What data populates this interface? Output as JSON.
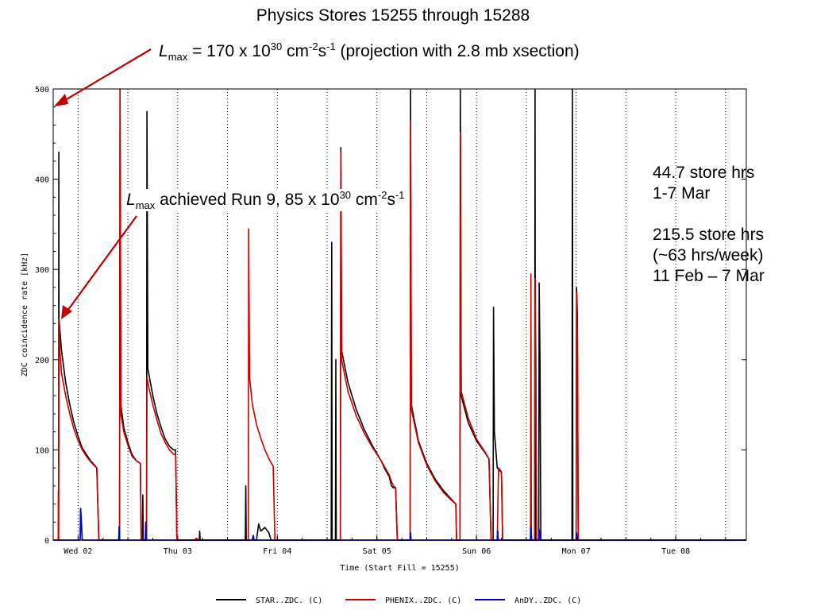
{
  "slide": {
    "title": "Physics Stores 15255 through 15288",
    "lmax_projection": {
      "symbol": "L",
      "subscript": "max",
      "pre": " = 170 x 10",
      "exp": "30",
      "mid1": " cm",
      "exp2": "-2",
      "mid2": "s",
      "exp3": "-1",
      "post": " (projection with 2.8 mb xsection)"
    },
    "lmax_achieved": {
      "symbol": "L",
      "subscript": "max",
      "pre": " achieved Run 9, 85 x 10",
      "exp": "30",
      "mid1": " cm",
      "exp2": "-2",
      "mid2": "s",
      "exp3": "-1"
    },
    "notes": {
      "line1": "44.7 store hrs",
      "line2": "1-7 Mar",
      "line3": "215.5 store hrs",
      "line4": "(~63 hrs/week)",
      "line5": "11 Feb – 7 Mar"
    },
    "arrow_color": "#c00000"
  },
  "chart_data": {
    "type": "line",
    "xlabel": "Time (Start Fill = 15255)",
    "ylabel": "ZDC coincidence rate [kHz]",
    "ylim": [
      0,
      500
    ],
    "x_unit": "hours since start of Tue 01 (midnight = 0)",
    "xlim": [
      18,
      185
    ],
    "x_ticks": [
      {
        "label": "Wed 02",
        "x": 24
      },
      {
        "label": "Thu 03",
        "x": 48
      },
      {
        "label": "Fri 04",
        "x": 72
      },
      {
        "label": "Sat 05",
        "x": 96
      },
      {
        "label": "Sun 06",
        "x": 120
      },
      {
        "label": "Mon 07",
        "x": 144
      },
      {
        "label": "Tue 08",
        "x": 168
      }
    ],
    "y_ticks": [
      0,
      100,
      200,
      300,
      400,
      500
    ],
    "grid": "vertical dotted at day boundaries",
    "legend_position": "bottom",
    "series": [
      {
        "name": "STAR..ZDC. (C)",
        "color": "#000000",
        "points": [
          [
            19.3,
            0
          ],
          [
            19.35,
            430
          ],
          [
            19.4,
            245
          ],
          [
            20,
            210
          ],
          [
            21,
            175
          ],
          [
            22,
            150
          ],
          [
            23,
            130
          ],
          [
            24,
            115
          ],
          [
            25,
            102
          ],
          [
            26,
            95
          ],
          [
            27,
            88
          ],
          [
            28,
            83
          ],
          [
            28.5,
            80
          ],
          [
            29.0,
            0
          ],
          [
            34.0,
            0
          ],
          [
            34.1,
            500
          ],
          [
            34.3,
            150
          ],
          [
            35,
            125
          ],
          [
            36,
            108
          ],
          [
            37,
            95
          ],
          [
            38,
            88
          ],
          [
            39,
            85
          ],
          [
            39.2,
            0
          ],
          [
            39.5,
            0
          ],
          [
            39.6,
            50
          ],
          [
            39.7,
            0
          ],
          [
            40.5,
            0
          ],
          [
            40.6,
            475
          ],
          [
            40.8,
            190
          ],
          [
            42,
            160
          ],
          [
            43,
            140
          ],
          [
            44,
            125
          ],
          [
            45,
            112
          ],
          [
            46,
            104
          ],
          [
            47,
            100
          ],
          [
            47.5,
            100
          ],
          [
            47.8,
            0
          ],
          [
            53.2,
            0
          ],
          [
            53.3,
            10
          ],
          [
            53.4,
            0
          ],
          [
            64.3,
            0
          ],
          [
            64.4,
            60
          ],
          [
            64.5,
            0
          ],
          [
            67,
            0
          ],
          [
            67.5,
            18
          ],
          [
            68,
            10
          ],
          [
            69,
            14
          ],
          [
            70,
            8
          ],
          [
            70.5,
            0
          ],
          [
            85,
            0
          ],
          [
            85.1,
            330
          ],
          [
            85.2,
            0
          ],
          [
            86,
            0
          ],
          [
            86.1,
            200
          ],
          [
            86.2,
            0
          ],
          [
            87.2,
            0
          ],
          [
            87.3,
            435
          ],
          [
            87.5,
            210
          ],
          [
            89,
            175
          ],
          [
            91,
            145
          ],
          [
            93,
            122
          ],
          [
            95,
            104
          ],
          [
            97,
            88
          ],
          [
            98,
            78
          ],
          [
            99,
            70
          ],
          [
            99.5,
            60
          ],
          [
            100,
            58
          ],
          [
            100.5,
            58
          ],
          [
            100.9,
            0
          ],
          [
            104,
            0
          ],
          [
            104.1,
            500
          ],
          [
            104.3,
            150
          ],
          [
            106,
            110
          ],
          [
            108,
            85
          ],
          [
            110,
            68
          ],
          [
            112,
            55
          ],
          [
            114,
            45
          ],
          [
            115,
            40
          ],
          [
            115.2,
            0
          ],
          [
            116,
            0
          ],
          [
            116.1,
            500
          ],
          [
            116.3,
            160
          ],
          [
            118,
            130
          ],
          [
            120,
            110
          ],
          [
            122,
            97
          ],
          [
            123,
            90
          ],
          [
            123.5,
            0
          ],
          [
            124,
            0
          ],
          [
            124.1,
            258
          ],
          [
            124.3,
            120
          ],
          [
            125,
            80
          ],
          [
            126,
            75
          ],
          [
            126.3,
            0
          ],
          [
            134,
            0
          ],
          [
            134.1,
            500
          ],
          [
            134.2,
            0
          ],
          [
            135,
            0
          ],
          [
            135.1,
            285
          ],
          [
            135.3,
            195
          ],
          [
            135.5,
            0
          ],
          [
            143,
            0
          ],
          [
            143.1,
            500
          ],
          [
            143.2,
            0
          ],
          [
            144,
            0
          ],
          [
            144.1,
            280
          ],
          [
            144.3,
            250
          ],
          [
            144.5,
            0
          ],
          [
            185,
            0
          ]
        ]
      },
      {
        "name": "PHENIX..ZDC. (C)",
        "color": "#cc0000",
        "points": [
          [
            19.2,
            0
          ],
          [
            19.25,
            55
          ],
          [
            19.3,
            0
          ],
          [
            19.4,
            245
          ],
          [
            19.6,
            210
          ],
          [
            20,
            185
          ],
          [
            21,
            160
          ],
          [
            22,
            140
          ],
          [
            23,
            123
          ],
          [
            24,
            110
          ],
          [
            25,
            100
          ],
          [
            26,
            93
          ],
          [
            27,
            87
          ],
          [
            28,
            82
          ],
          [
            28.5,
            80
          ],
          [
            29.0,
            0
          ],
          [
            34.0,
            0
          ],
          [
            34.1,
            500
          ],
          [
            34.3,
            140
          ],
          [
            35,
            120
          ],
          [
            36,
            105
          ],
          [
            37,
            93
          ],
          [
            38,
            88
          ],
          [
            39,
            85
          ],
          [
            39.2,
            0
          ],
          [
            40.5,
            0
          ],
          [
            40.6,
            180
          ],
          [
            41,
            170
          ],
          [
            42,
            150
          ],
          [
            43,
            133
          ],
          [
            44,
            118
          ],
          [
            45,
            108
          ],
          [
            46,
            100
          ],
          [
            47,
            95
          ],
          [
            47.5,
            95
          ],
          [
            47.8,
            0
          ],
          [
            52,
            0
          ],
          [
            52.5,
            2
          ],
          [
            53,
            0
          ],
          [
            65,
            0
          ],
          [
            65.1,
            345
          ],
          [
            65.3,
            180
          ],
          [
            66,
            150
          ],
          [
            67,
            128
          ],
          [
            68,
            113
          ],
          [
            69,
            100
          ],
          [
            70,
            90
          ],
          [
            71,
            82
          ],
          [
            71.4,
            0
          ],
          [
            87.2,
            0
          ],
          [
            87.3,
            430
          ],
          [
            87.5,
            200
          ],
          [
            89,
            165
          ],
          [
            91,
            138
          ],
          [
            93,
            118
          ],
          [
            95,
            102
          ],
          [
            97,
            88
          ],
          [
            98,
            80
          ],
          [
            99,
            72
          ],
          [
            99.5,
            65
          ],
          [
            100,
            60
          ],
          [
            100.5,
            58
          ],
          [
            100.9,
            0
          ],
          [
            104,
            0
          ],
          [
            104.1,
            465
          ],
          [
            104.3,
            145
          ],
          [
            106,
            108
          ],
          [
            108,
            83
          ],
          [
            110,
            66
          ],
          [
            112,
            53
          ],
          [
            114,
            44
          ],
          [
            115,
            40
          ],
          [
            115.2,
            0
          ],
          [
            116,
            0
          ],
          [
            116.1,
            452
          ],
          [
            116.3,
            165
          ],
          [
            118,
            135
          ],
          [
            120,
            112
          ],
          [
            122,
            98
          ],
          [
            123,
            90
          ],
          [
            123.5,
            0
          ],
          [
            125,
            0
          ],
          [
            125.3,
            80
          ],
          [
            126,
            76
          ],
          [
            126.3,
            0
          ],
          [
            133,
            0
          ],
          [
            133.1,
            295
          ],
          [
            133.2,
            0
          ],
          [
            134,
            0
          ],
          [
            134.1,
            290
          ],
          [
            134.3,
            195
          ],
          [
            134.5,
            0
          ],
          [
            144,
            0
          ],
          [
            144.1,
            275
          ],
          [
            144.3,
            230
          ],
          [
            144.5,
            0
          ],
          [
            185,
            0
          ]
        ]
      },
      {
        "name": "AnDY..ZDC. (C)",
        "color": "#0000cc",
        "points": [
          [
            18,
            0
          ],
          [
            24.5,
            0
          ],
          [
            24.6,
            35
          ],
          [
            24.8,
            20
          ],
          [
            25,
            0
          ],
          [
            33.8,
            0
          ],
          [
            33.9,
            15
          ],
          [
            34,
            0
          ],
          [
            40.2,
            0
          ],
          [
            40.3,
            20
          ],
          [
            40.4,
            0
          ],
          [
            66,
            0
          ],
          [
            66.2,
            5
          ],
          [
            66.4,
            0
          ],
          [
            104,
            0
          ],
          [
            104.1,
            8
          ],
          [
            104.2,
            0
          ],
          [
            125,
            0
          ],
          [
            125.1,
            10
          ],
          [
            125.2,
            0
          ],
          [
            133,
            0
          ],
          [
            133.1,
            14
          ],
          [
            133.3,
            0
          ],
          [
            135,
            0
          ],
          [
            135.1,
            12
          ],
          [
            135.3,
            0
          ],
          [
            144,
            0
          ],
          [
            144.1,
            8
          ],
          [
            144.3,
            0
          ],
          [
            185,
            0
          ]
        ]
      }
    ]
  }
}
